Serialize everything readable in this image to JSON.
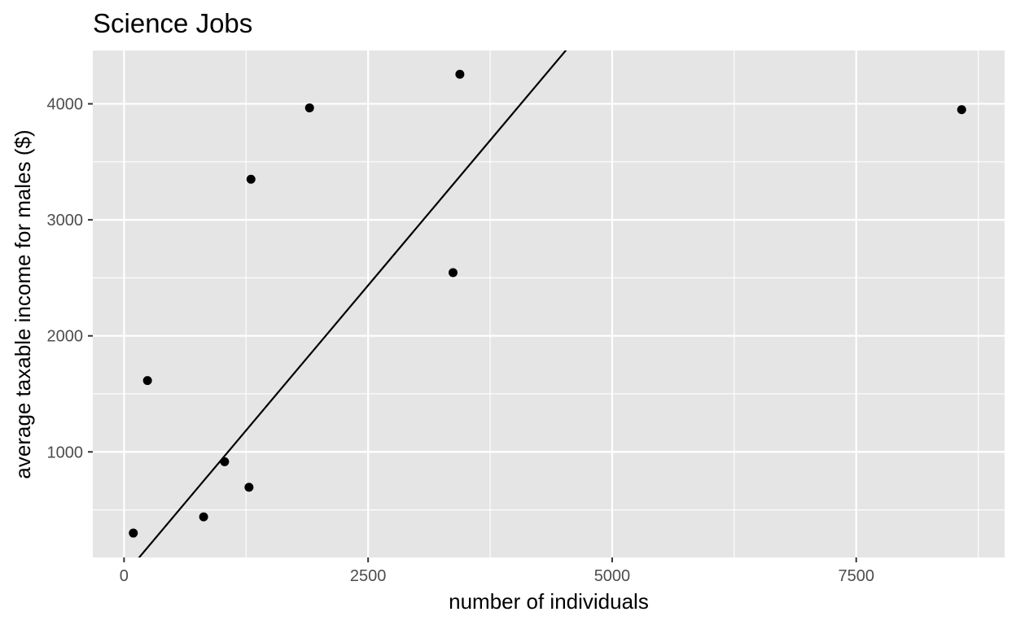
{
  "chart_data": {
    "type": "scatter",
    "title": "Science Jobs",
    "xlabel": "number of individuals",
    "ylabel": "average taxable income for males ($)",
    "xlim": [
      -320,
      9020
    ],
    "ylim": [
      90,
      4460
    ],
    "x_ticks": [
      0,
      2500,
      5000,
      7500
    ],
    "x_tick_labels": [
      "0",
      "2500",
      "5000",
      "7500"
    ],
    "y_ticks": [
      1000,
      2000,
      3000,
      4000
    ],
    "y_tick_labels": [
      "1000",
      "2000",
      "3000",
      "4000"
    ],
    "grid": true,
    "legend": "none",
    "points": [
      {
        "x": 95,
        "y": 300
      },
      {
        "x": 240,
        "y": 1615
      },
      {
        "x": 815,
        "y": 440
      },
      {
        "x": 1030,
        "y": 915
      },
      {
        "x": 1280,
        "y": 695
      },
      {
        "x": 1300,
        "y": 3350
      },
      {
        "x": 1900,
        "y": 3965
      },
      {
        "x": 3370,
        "y": 2545
      },
      {
        "x": 3440,
        "y": 4255
      },
      {
        "x": 8580,
        "y": 3950
      }
    ],
    "fit_line": {
      "intercept": -65,
      "slope": 1.0
    },
    "colors": {
      "panel_background": "#e5e5e5",
      "grid": "#ffffff",
      "points": "#000000",
      "fit_line": "#000000"
    }
  }
}
